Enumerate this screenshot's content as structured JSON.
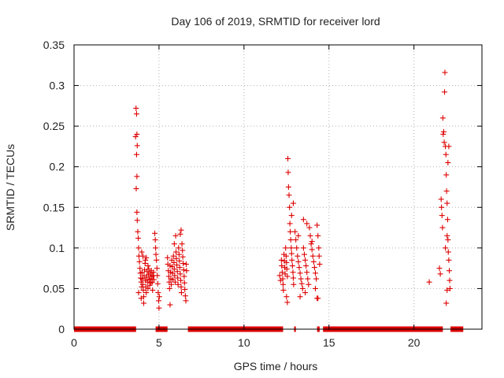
{
  "chart_data": {
    "type": "scatter",
    "title": "Day 106 of 2019, SRMTID for receiver lord",
    "xlabel": "GPS time / hours",
    "ylabel": "SRMTID / TECUs",
    "xlim": [
      0,
      24
    ],
    "ylim": [
      0,
      0.35
    ],
    "xticks": [
      0,
      5,
      10,
      15,
      20
    ],
    "xtick_labels": [
      "0",
      "5",
      "10",
      "15",
      "20"
    ],
    "yticks": [
      0,
      0.05,
      0.1,
      0.15,
      0.2,
      0.25,
      0.3,
      0.35
    ],
    "ytick_labels": [
      "0",
      "0.05",
      "0.1",
      "0.15",
      "0.2",
      "0.25",
      "0.3",
      "0.35"
    ],
    "grid": true,
    "marker": "+",
    "color": "#dd0000",
    "series": [
      {
        "name": "SRMTID",
        "points": [
          [
            3.65,
            0.272
          ],
          [
            3.68,
            0.265
          ],
          [
            3.7,
            0.24
          ],
          [
            3.62,
            0.237
          ],
          [
            3.72,
            0.226
          ],
          [
            3.68,
            0.215
          ],
          [
            3.7,
            0.188
          ],
          [
            3.66,
            0.173
          ],
          [
            3.7,
            0.144
          ],
          [
            3.72,
            0.134
          ],
          [
            3.75,
            0.12
          ],
          [
            3.78,
            0.112
          ],
          [
            3.8,
            0.1
          ],
          [
            3.82,
            0.09
          ],
          [
            3.85,
            0.083
          ],
          [
            3.88,
            0.075
          ],
          [
            3.9,
            0.069
          ],
          [
            3.92,
            0.063
          ],
          [
            3.95,
            0.058
          ],
          [
            3.98,
            0.052
          ],
          [
            3.8,
            0.045
          ],
          [
            4.0,
            0.07
          ],
          [
            4.02,
            0.062
          ],
          [
            4.05,
            0.055
          ],
          [
            4.08,
            0.048
          ],
          [
            4.1,
            0.04
          ],
          [
            4.12,
            0.066
          ],
          [
            4.15,
            0.073
          ],
          [
            4.18,
            0.081
          ],
          [
            4.2,
            0.06
          ],
          [
            4.22,
            0.052
          ],
          [
            4.25,
            0.045
          ],
          [
            4.28,
            0.064
          ],
          [
            4.3,
            0.071
          ],
          [
            4.32,
            0.058
          ],
          [
            4.35,
            0.05
          ],
          [
            4.38,
            0.067
          ],
          [
            4.4,
            0.074
          ],
          [
            4.42,
            0.061
          ],
          [
            4.45,
            0.054
          ],
          [
            4.48,
            0.069
          ],
          [
            4.5,
            0.062
          ],
          [
            4.52,
            0.057
          ],
          [
            4.55,
            0.072
          ],
          [
            4.58,
            0.065
          ],
          [
            4.6,
            0.058
          ],
          [
            4.62,
            0.048
          ],
          [
            4.65,
            0.066
          ],
          [
            4.68,
            0.07
          ],
          [
            4.7,
            0.061
          ],
          [
            3.98,
            0.095
          ],
          [
            4.05,
            0.09
          ],
          [
            4.2,
            0.085
          ],
          [
            4.1,
            0.032
          ],
          [
            3.95,
            0.038
          ],
          [
            4.35,
            0.078
          ],
          [
            4.25,
            0.088
          ],
          [
            4.75,
            0.118
          ],
          [
            4.78,
            0.11
          ],
          [
            4.8,
            0.1
          ],
          [
            4.82,
            0.092
          ],
          [
            4.85,
            0.085
          ],
          [
            4.88,
            0.075
          ],
          [
            4.9,
            0.066
          ],
          [
            4.92,
            0.056
          ],
          [
            4.95,
            0.045
          ],
          [
            4.98,
            0.035
          ],
          [
            5.0,
            0.026
          ],
          [
            5.02,
            0.04
          ],
          [
            5.5,
            0.088
          ],
          [
            5.52,
            0.08
          ],
          [
            5.55,
            0.072
          ],
          [
            5.58,
            0.065
          ],
          [
            5.6,
            0.058
          ],
          [
            5.62,
            0.05
          ],
          [
            5.65,
            0.078
          ],
          [
            5.68,
            0.07
          ],
          [
            5.7,
            0.062
          ],
          [
            5.72,
            0.055
          ],
          [
            5.75,
            0.085
          ],
          [
            5.78,
            0.077
          ],
          [
            5.8,
            0.069
          ],
          [
            5.82,
            0.061
          ],
          [
            5.85,
            0.09
          ],
          [
            5.88,
            0.082
          ],
          [
            5.9,
            0.074
          ],
          [
            5.92,
            0.066
          ],
          [
            5.95,
            0.058
          ],
          [
            5.98,
            0.115
          ],
          [
            6.0,
            0.095
          ],
          [
            6.02,
            0.087
          ],
          [
            6.05,
            0.079
          ],
          [
            6.08,
            0.071
          ],
          [
            6.1,
            0.063
          ],
          [
            6.12,
            0.055
          ],
          [
            6.15,
            0.1
          ],
          [
            6.18,
            0.092
          ],
          [
            6.2,
            0.084
          ],
          [
            6.22,
            0.076
          ],
          [
            6.25,
            0.068
          ],
          [
            6.28,
            0.06
          ],
          [
            6.3,
            0.052
          ],
          [
            6.32,
            0.045
          ],
          [
            6.35,
            0.105
          ],
          [
            6.38,
            0.097
          ],
          [
            6.4,
            0.089
          ],
          [
            6.42,
            0.081
          ],
          [
            6.45,
            0.073
          ],
          [
            6.48,
            0.065
          ],
          [
            6.5,
            0.057
          ],
          [
            6.52,
            0.049
          ],
          [
            6.55,
            0.041
          ],
          [
            6.58,
            0.035
          ],
          [
            6.6,
            0.08
          ],
          [
            6.62,
            0.072
          ],
          [
            6.3,
            0.122
          ],
          [
            6.25,
            0.117
          ],
          [
            5.65,
            0.03
          ],
          [
            5.9,
            0.105
          ],
          [
            12.1,
            0.066
          ],
          [
            12.15,
            0.06
          ],
          [
            12.2,
            0.085
          ],
          [
            12.22,
            0.078
          ],
          [
            12.25,
            0.07
          ],
          [
            12.28,
            0.062
          ],
          [
            12.3,
            0.055
          ],
          [
            12.32,
            0.048
          ],
          [
            12.35,
            0.092
          ],
          [
            12.38,
            0.084
          ],
          [
            12.4,
            0.076
          ],
          [
            12.42,
            0.068
          ],
          [
            12.45,
            0.1
          ],
          [
            12.48,
            0.09
          ],
          [
            12.5,
            0.082
          ],
          [
            12.52,
            0.074
          ],
          [
            12.55,
            0.065
          ],
          [
            12.58,
            0.21
          ],
          [
            12.6,
            0.193
          ],
          [
            12.62,
            0.175
          ],
          [
            12.65,
            0.165
          ],
          [
            12.68,
            0.15
          ],
          [
            12.7,
            0.13
          ],
          [
            12.72,
            0.12
          ],
          [
            12.75,
            0.11
          ],
          [
            12.78,
            0.1
          ],
          [
            12.8,
            0.093
          ],
          [
            12.82,
            0.085
          ],
          [
            12.85,
            0.078
          ],
          [
            12.88,
            0.07
          ],
          [
            12.9,
            0.063
          ],
          [
            12.92,
            0.055
          ],
          [
            12.5,
            0.04
          ],
          [
            12.55,
            0.033
          ],
          [
            12.9,
            0.155
          ],
          [
            12.8,
            0.14
          ],
          [
            13.0,
            0.12
          ],
          [
            13.05,
            0.11
          ],
          [
            13.1,
            0.1
          ],
          [
            13.15,
            0.09
          ],
          [
            13.2,
            0.083
          ],
          [
            13.25,
            0.076
          ],
          [
            13.3,
            0.069
          ],
          [
            13.35,
            0.062
          ],
          [
            13.4,
            0.056
          ],
          [
            13.45,
            0.05
          ],
          [
            13.5,
            0.1
          ],
          [
            13.55,
            0.092
          ],
          [
            13.6,
            0.085
          ],
          [
            13.65,
            0.078
          ],
          [
            13.7,
            0.07
          ],
          [
            13.75,
            0.062
          ],
          [
            13.8,
            0.055
          ],
          [
            13.85,
            0.125
          ],
          [
            13.9,
            0.115
          ],
          [
            13.95,
            0.105
          ],
          [
            14.0,
            0.098
          ],
          [
            14.05,
            0.09
          ],
          [
            14.1,
            0.083
          ],
          [
            14.15,
            0.076
          ],
          [
            14.2,
            0.069
          ],
          [
            14.25,
            0.062
          ],
          [
            14.3,
            0.128
          ],
          [
            14.35,
            0.115
          ],
          [
            14.4,
            0.1
          ],
          [
            14.42,
            0.09
          ],
          [
            14.45,
            0.08
          ],
          [
            13.3,
            0.04
          ],
          [
            13.6,
            0.045
          ],
          [
            14.2,
            0.05
          ],
          [
            14.3,
            0.038
          ],
          [
            14.35,
            0.038
          ],
          [
            13.5,
            0.135
          ],
          [
            13.7,
            0.13
          ],
          [
            14.0,
            0.108
          ],
          [
            13.2,
            0.115
          ],
          [
            21.5,
            0.075
          ],
          [
            21.55,
            0.068
          ],
          [
            21.6,
            0.16
          ],
          [
            21.62,
            0.15
          ],
          [
            21.65,
            0.14
          ],
          [
            21.68,
            0.125
          ],
          [
            21.7,
            0.26
          ],
          [
            21.72,
            0.24
          ],
          [
            21.75,
            0.243
          ],
          [
            21.78,
            0.23
          ],
          [
            21.8,
            0.292
          ],
          [
            21.82,
            0.316
          ],
          [
            21.85,
            0.225
          ],
          [
            21.88,
            0.215
          ],
          [
            21.9,
            0.19
          ],
          [
            21.92,
            0.17
          ],
          [
            21.95,
            0.155
          ],
          [
            21.98,
            0.135
          ],
          [
            22.0,
            0.11
          ],
          [
            22.02,
            0.095
          ],
          [
            22.05,
            0.085
          ],
          [
            22.08,
            0.072
          ],
          [
            22.1,
            0.06
          ],
          [
            22.12,
            0.05
          ],
          [
            21.9,
            0.032
          ],
          [
            21.95,
            0.048
          ],
          [
            22.0,
            0.205
          ],
          [
            22.05,
            0.225
          ],
          [
            21.85,
            0.1
          ],
          [
            21.95,
            0.115
          ],
          [
            20.9,
            0.058
          ]
        ]
      },
      {
        "name": "zero-baseline",
        "segments": [
          [
            0,
            3.65
          ],
          [
            4.8,
            5.5
          ],
          [
            6.7,
            12.3
          ],
          [
            12.95,
            13.05
          ],
          [
            14.3,
            14.45
          ],
          [
            14.65,
            21.7
          ],
          [
            22.15,
            22.9
          ]
        ]
      }
    ]
  }
}
